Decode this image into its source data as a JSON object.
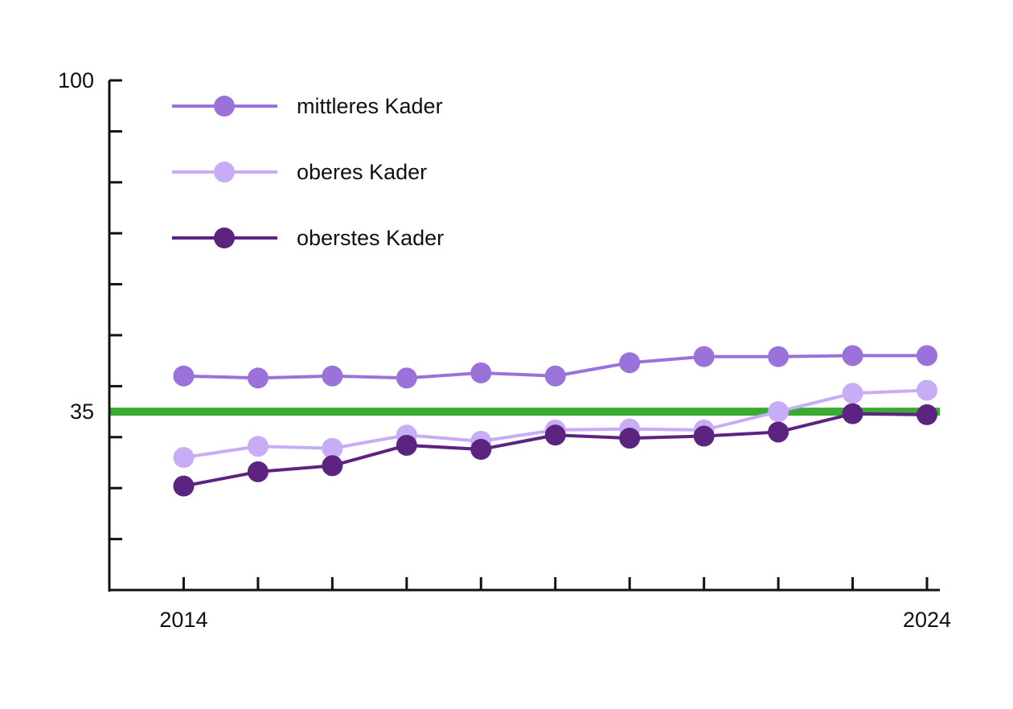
{
  "chart_data": {
    "type": "line",
    "x": [
      2014,
      2015,
      2016,
      2017,
      2018,
      2019,
      2020,
      2021,
      2022,
      2023,
      2024
    ],
    "xlim": [
      2013,
      2024
    ],
    "ylim": [
      0,
      100
    ],
    "y_tick_step": 10,
    "x_tick_labels": [
      {
        "x": 2014,
        "label": "2014"
      },
      {
        "x": 2024,
        "label": "2024"
      }
    ],
    "y_tick_labels": [
      {
        "y": 100,
        "label": "100"
      },
      {
        "y": 35,
        "label": "35"
      }
    ],
    "reference_line": {
      "y": 35,
      "color": "#3aaa35"
    },
    "legend_position": "top-left",
    "series": [
      {
        "name": "mittleres Kader",
        "color": "#9b72d9",
        "values": [
          42,
          41.6,
          42,
          41.6,
          42.6,
          42,
          44.6,
          45.8,
          45.8,
          46,
          46
        ]
      },
      {
        "name": "oberes Kader",
        "color": "#c7adf6",
        "values": [
          26,
          28.2,
          27.8,
          30.4,
          29.2,
          31.4,
          31.6,
          31.4,
          35,
          38.6,
          39.2
        ]
      },
      {
        "name": "oberstes Kader",
        "color": "#5c2380",
        "values": [
          20.4,
          23.2,
          24.4,
          28.4,
          27.6,
          30.4,
          29.8,
          30.2,
          31,
          34.6,
          34.4
        ]
      }
    ]
  }
}
